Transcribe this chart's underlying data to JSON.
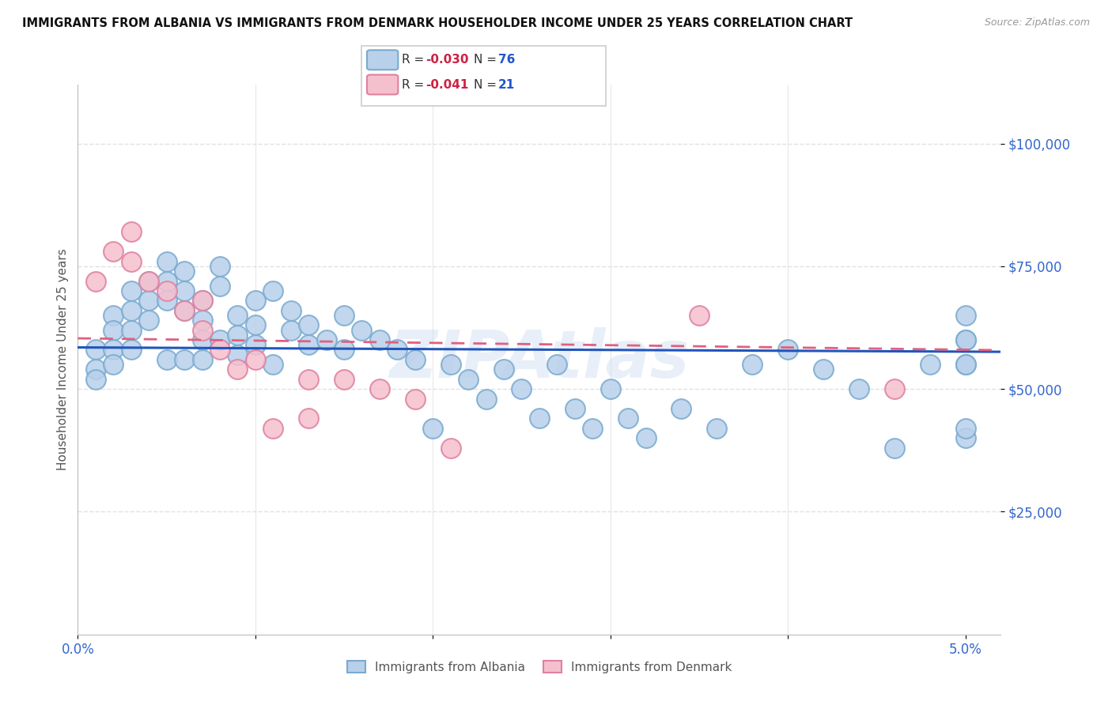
{
  "title": "IMMIGRANTS FROM ALBANIA VS IMMIGRANTS FROM DENMARK HOUSEHOLDER INCOME UNDER 25 YEARS CORRELATION CHART",
  "source": "Source: ZipAtlas.com",
  "ylabel": "Householder Income Under 25 years",
  "ytick_labels": [
    "$25,000",
    "$50,000",
    "$75,000",
    "$100,000"
  ],
  "ytick_values": [
    25000,
    50000,
    75000,
    100000
  ],
  "ymin": 0,
  "ymax": 112000,
  "xmin": 0.0,
  "xmax": 0.052,
  "albania_color": "#b8d0ea",
  "albania_edge": "#7aaad0",
  "denmark_color": "#f5c0ce",
  "denmark_edge": "#e080a0",
  "trendline_albania_color": "#2255bb",
  "trendline_denmark_color": "#e06080",
  "r_albania": -0.03,
  "r_denmark": -0.041,
  "n_albania": 76,
  "n_denmark": 21,
  "watermark": "ZIPAtlas",
  "background_color": "#ffffff",
  "grid_color": "#dddddd",
  "title_color": "#111111",
  "axis_label_color": "#3366cc",
  "albania_x": [
    0.001,
    0.001,
    0.001,
    0.002,
    0.002,
    0.002,
    0.002,
    0.003,
    0.003,
    0.003,
    0.003,
    0.004,
    0.004,
    0.004,
    0.005,
    0.005,
    0.005,
    0.005,
    0.006,
    0.006,
    0.006,
    0.006,
    0.007,
    0.007,
    0.007,
    0.007,
    0.008,
    0.008,
    0.008,
    0.009,
    0.009,
    0.009,
    0.01,
    0.01,
    0.01,
    0.011,
    0.011,
    0.012,
    0.012,
    0.013,
    0.013,
    0.014,
    0.015,
    0.015,
    0.016,
    0.017,
    0.018,
    0.019,
    0.02,
    0.021,
    0.022,
    0.023,
    0.024,
    0.025,
    0.026,
    0.027,
    0.028,
    0.029,
    0.03,
    0.031,
    0.032,
    0.034,
    0.036,
    0.038,
    0.04,
    0.042,
    0.044,
    0.046,
    0.048,
    0.05,
    0.05,
    0.05,
    0.05,
    0.05,
    0.05,
    0.05
  ],
  "albania_y": [
    58000,
    54000,
    52000,
    65000,
    62000,
    58000,
    55000,
    70000,
    66000,
    62000,
    58000,
    72000,
    68000,
    64000,
    76000,
    72000,
    68000,
    56000,
    74000,
    70000,
    66000,
    56000,
    68000,
    64000,
    60000,
    56000,
    75000,
    71000,
    60000,
    65000,
    61000,
    57000,
    68000,
    63000,
    59000,
    70000,
    55000,
    66000,
    62000,
    63000,
    59000,
    60000,
    65000,
    58000,
    62000,
    60000,
    58000,
    56000,
    42000,
    55000,
    52000,
    48000,
    54000,
    50000,
    44000,
    55000,
    46000,
    42000,
    50000,
    44000,
    40000,
    46000,
    42000,
    55000,
    58000,
    54000,
    50000,
    38000,
    55000,
    60000,
    55000,
    60000,
    65000,
    40000,
    55000,
    42000
  ],
  "denmark_x": [
    0.001,
    0.002,
    0.003,
    0.003,
    0.004,
    0.005,
    0.006,
    0.007,
    0.007,
    0.008,
    0.009,
    0.01,
    0.011,
    0.013,
    0.013,
    0.015,
    0.017,
    0.019,
    0.021,
    0.035,
    0.046
  ],
  "denmark_y": [
    72000,
    78000,
    82000,
    76000,
    72000,
    70000,
    66000,
    68000,
    62000,
    58000,
    54000,
    56000,
    42000,
    52000,
    44000,
    52000,
    50000,
    48000,
    38000,
    65000,
    50000
  ]
}
